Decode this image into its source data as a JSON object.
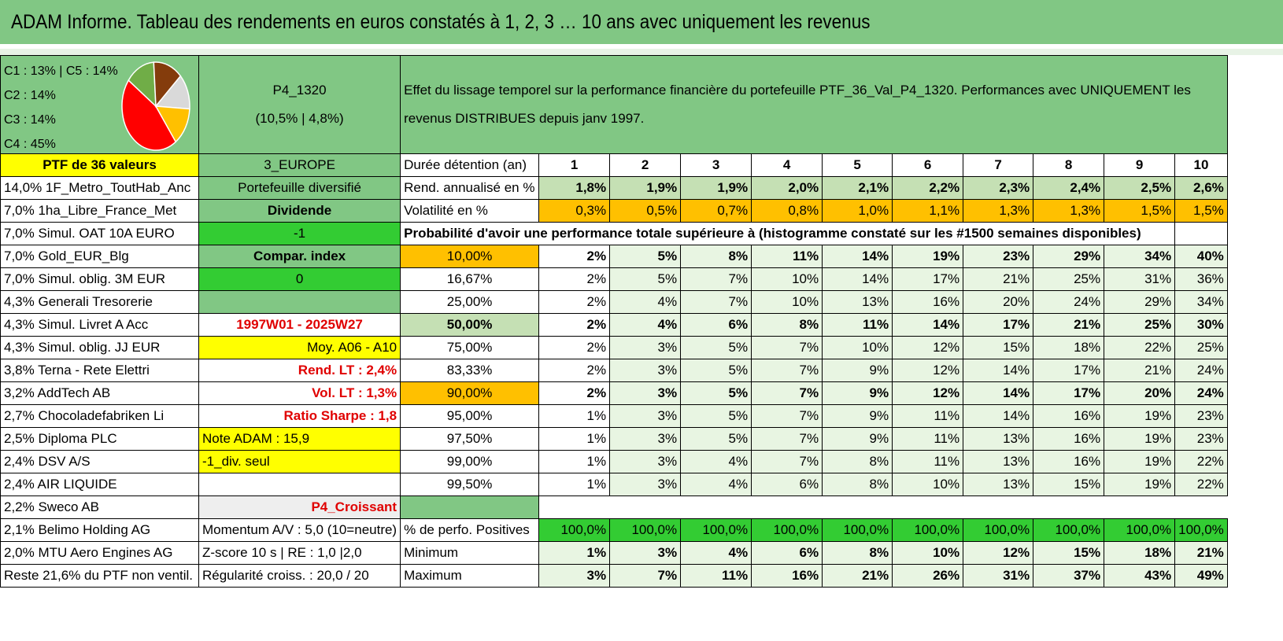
{
  "title": "ADAM Informe. Tableau des rendements en euros constatés à 1, 2, 3 … 10 ans avec uniquement les revenus",
  "pie_legend": [
    "C1 : 13% | C5 : 14%",
    "C2 : 14%",
    "C3 : 14%",
    "C4 : 45%"
  ],
  "pie_slices": [
    {
      "label": "C4",
      "value": 45,
      "color": "#ff0000"
    },
    {
      "label": "C3",
      "value": 14,
      "color": "#70ad47"
    },
    {
      "label": "C2",
      "value": 14,
      "color": "#843c0c"
    },
    {
      "label": "C1",
      "value": 13,
      "color": "#d9d9d9"
    },
    {
      "label": "C5",
      "value": 14,
      "color": "#ffc000"
    }
  ],
  "portfolio": {
    "name": "P4_1320",
    "stats": "(10,5% | 4,8%)"
  },
  "description": "Effet du lissage temporel sur la performance financière du portefeuille PTF_36_Val_P4_1320. Performances avec UNIQUEMENT les revenus DISTRIBUES depuis janv 1997.",
  "ptf_label": "PTF de 36 valeurs",
  "region": "3_EUROPE",
  "holdings": [
    "14,0% 1F_Metro_ToutHab_Anc",
    "7,0% 1ha_Libre_France_Met",
    "7,0% Simul. OAT 10A EURO",
    "7,0% Gold_EUR_Blg",
    "7,0% Simul. oblig. 3M EUR",
    "4,3% Generali Tresorerie",
    "4,3% Simul. Livret A Acc",
    "4,3% Simul. oblig. JJ EUR",
    "3,8% Terna - Rete Elettri",
    "3,2% AddTech AB",
    "2,7% Chocoladefabriken Li",
    "2,5% Diploma PLC",
    "2,4% DSV A/S",
    "2,4% AIR LIQUIDE",
    "2,2% Sweco AB",
    "2,1% Belimo Holding AG",
    "2,0% MTU Aero Engines AG",
    "Reste 21,6% du PTF non ventil."
  ],
  "info": {
    "diversified": "Portefeuille diversifié",
    "dividend": "Dividende",
    "minus_one": "-1",
    "compar": "Compar. index",
    "zero": "0",
    "empty": "",
    "period": "1997W01 - 2025W27",
    "moy": "Moy. A06 - A10",
    "rend_lt": "Rend. LT : 2,4%",
    "vol_lt": "Vol. LT : 1,3%",
    "sharpe": "Ratio Sharpe : 1,8",
    "note": "Note ADAM : 15,9",
    "div_only": "-1_div. seul",
    "croissant": "P4_Croissant",
    "momentum": "Momentum A/V : 5,0 (10=neutre)",
    "zscore": "Z-score 10 s | RE : 1,0 |2,0",
    "regularite": "Régularité croiss. : 20,0 / 20"
  },
  "years_header": "Durée détention (an)",
  "years": [
    "1",
    "2",
    "3",
    "4",
    "5",
    "6",
    "7",
    "8",
    "9",
    "10"
  ],
  "rend_label": "Rend. annualisé en %",
  "rend": [
    "1,8%",
    "1,9%",
    "1,9%",
    "2,0%",
    "2,1%",
    "2,2%",
    "2,3%",
    "2,4%",
    "2,5%",
    "2,6%"
  ],
  "vol_label": "Volatilité en %",
  "vol": [
    "0,3%",
    "0,5%",
    "0,7%",
    "0,8%",
    "1,0%",
    "1,1%",
    "1,3%",
    "1,3%",
    "1,5%",
    "1,5%"
  ],
  "prob_title": "Probabilité d'avoir une performance totale supérieure à (histogramme constaté sur les #1500 semaines disponibles)",
  "prob_rows": [
    {
      "pct": "10,00%",
      "values": [
        "2%",
        "5%",
        "8%",
        "11%",
        "14%",
        "19%",
        "23%",
        "29%",
        "34%",
        "40%"
      ]
    },
    {
      "pct": "16,67%",
      "values": [
        "2%",
        "5%",
        "7%",
        "10%",
        "14%",
        "17%",
        "21%",
        "25%",
        "31%",
        "36%"
      ]
    },
    {
      "pct": "25,00%",
      "values": [
        "2%",
        "4%",
        "7%",
        "10%",
        "13%",
        "16%",
        "20%",
        "24%",
        "29%",
        "34%"
      ]
    },
    {
      "pct": "50,00%",
      "values": [
        "2%",
        "4%",
        "6%",
        "8%",
        "11%",
        "14%",
        "17%",
        "21%",
        "25%",
        "30%"
      ]
    },
    {
      "pct": "75,00%",
      "values": [
        "2%",
        "3%",
        "5%",
        "7%",
        "10%",
        "12%",
        "15%",
        "18%",
        "22%",
        "25%"
      ]
    },
    {
      "pct": "83,33%",
      "values": [
        "2%",
        "3%",
        "5%",
        "7%",
        "9%",
        "12%",
        "14%",
        "17%",
        "21%",
        "24%"
      ]
    },
    {
      "pct": "90,00%",
      "values": [
        "2%",
        "3%",
        "5%",
        "7%",
        "9%",
        "12%",
        "14%",
        "17%",
        "20%",
        "24%"
      ]
    },
    {
      "pct": "95,00%",
      "values": [
        "1%",
        "3%",
        "5%",
        "7%",
        "9%",
        "11%",
        "14%",
        "16%",
        "19%",
        "23%"
      ]
    },
    {
      "pct": "97,50%",
      "values": [
        "1%",
        "3%",
        "5%",
        "7%",
        "9%",
        "11%",
        "13%",
        "16%",
        "19%",
        "23%"
      ]
    },
    {
      "pct": "99,00%",
      "values": [
        "1%",
        "3%",
        "4%",
        "7%",
        "8%",
        "11%",
        "13%",
        "16%",
        "19%",
        "22%"
      ]
    },
    {
      "pct": "99,50%",
      "values": [
        "1%",
        "3%",
        "4%",
        "6%",
        "8%",
        "10%",
        "13%",
        "15%",
        "19%",
        "22%"
      ]
    }
  ],
  "pos_label": "% de perfo. Positives",
  "pos": [
    "100,0%",
    "100,0%",
    "100,0%",
    "100,0%",
    "100,0%",
    "100,0%",
    "100,0%",
    "100,0%",
    "100,0%",
    "100,0%"
  ],
  "min_label": "Minimum",
  "min": [
    "1%",
    "3%",
    "4%",
    "6%",
    "8%",
    "10%",
    "12%",
    "15%",
    "18%",
    "21%"
  ],
  "max_label": "Maximum",
  "max": [
    "3%",
    "7%",
    "11%",
    "16%",
    "21%",
    "26%",
    "31%",
    "37%",
    "43%",
    "49%"
  ]
}
